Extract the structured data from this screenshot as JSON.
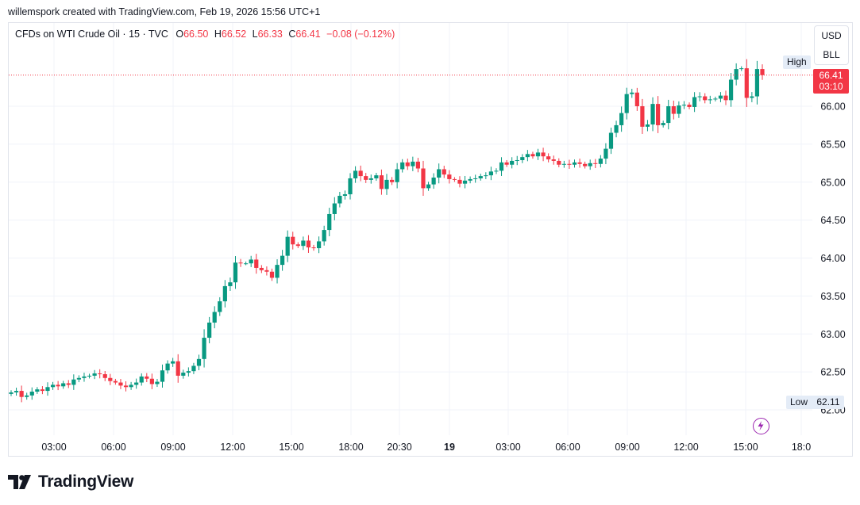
{
  "credit": "willemspork created with TradingView.com, Feb 19, 2026 15:56 UTC+1",
  "legend": {
    "symbol": "CFDs on WTI Crude Oil · 15 · TVC",
    "o_label": "O",
    "o": "66.50",
    "h_label": "H",
    "h": "66.52",
    "l_label": "L",
    "l": "66.33",
    "c_label": "C",
    "c": "66.41",
    "change": "−0.08 (−0.12%)"
  },
  "axis_menu": {
    "currency": "USD",
    "unit": "BLL"
  },
  "markers": {
    "high_label": "High",
    "low_label": "Low",
    "low_value": "62.11",
    "last_price": "66.41",
    "countdown": "03:10"
  },
  "brand": "TradingView",
  "colors": {
    "up": "#089981",
    "down": "#f23645",
    "grid": "#f0f3fa",
    "text": "#131722",
    "marker_bg": "#e4ecf7",
    "event": "#9c27b0"
  },
  "icons": {
    "brand": "tradingview-logo-icon",
    "event": "lightning-icon"
  },
  "chart_data": {
    "type": "candlestick",
    "interval": "15",
    "ylim": [
      61.85,
      66.9
    ],
    "y_ticks": [
      "62.00",
      "62.50",
      "63.00",
      "63.50",
      "64.00",
      "64.50",
      "65.00",
      "65.50",
      "66.00"
    ],
    "x_ticks": [
      "03:00",
      "06:00",
      "09:00",
      "12:00",
      "15:00",
      "18:00",
      "20:30",
      "19",
      "03:00",
      "06:00",
      "09:00",
      "12:00",
      "15:00",
      "18:0"
    ],
    "grid": true,
    "closes": [
      62.23,
      62.25,
      62.17,
      62.19,
      62.24,
      62.27,
      62.25,
      62.3,
      62.33,
      62.31,
      62.35,
      62.33,
      62.4,
      62.42,
      62.44,
      62.45,
      62.48,
      62.47,
      62.42,
      62.38,
      62.36,
      62.32,
      62.3,
      62.33,
      62.36,
      62.44,
      62.41,
      62.34,
      62.37,
      62.52,
      62.61,
      62.64,
      62.45,
      62.49,
      62.51,
      62.58,
      62.67,
      62.95,
      63.15,
      63.29,
      63.43,
      63.63,
      63.68,
      63.94,
      63.93,
      63.93,
      63.98,
      63.87,
      63.84,
      63.82,
      63.74,
      63.91,
      64.03,
      64.28,
      64.18,
      64.16,
      64.23,
      64.14,
      64.13,
      64.22,
      64.37,
      64.58,
      64.72,
      64.82,
      64.84,
      65.05,
      65.15,
      65.08,
      65.03,
      65.05,
      65.09,
      64.91,
      65.03,
      65.0,
      65.17,
      65.26,
      65.21,
      65.27,
      65.18,
      64.92,
      64.97,
      65.06,
      65.17,
      65.1,
      65.04,
      65.03,
      64.98,
      65.02,
      65.04,
      65.05,
      65.08,
      65.09,
      65.14,
      65.15,
      65.26,
      65.23,
      65.28,
      65.29,
      65.33,
      65.37,
      65.34,
      65.39,
      65.34,
      65.3,
      65.28,
      65.23,
      65.24,
      65.23,
      65.26,
      65.24,
      65.21,
      65.25,
      65.24,
      65.31,
      65.44,
      65.65,
      65.75,
      65.91,
      66.16,
      66.18,
      66.0,
      65.73,
      65.76,
      66.03,
      65.75,
      65.78,
      66.0,
      65.9,
      66.01,
      66.02,
      65.99,
      66.12,
      66.13,
      66.08,
      66.09,
      66.1,
      66.14,
      66.08,
      66.35,
      66.49,
      66.5,
      66.11,
      66.13,
      66.49,
      66.41
    ],
    "ylabel": ""
  }
}
